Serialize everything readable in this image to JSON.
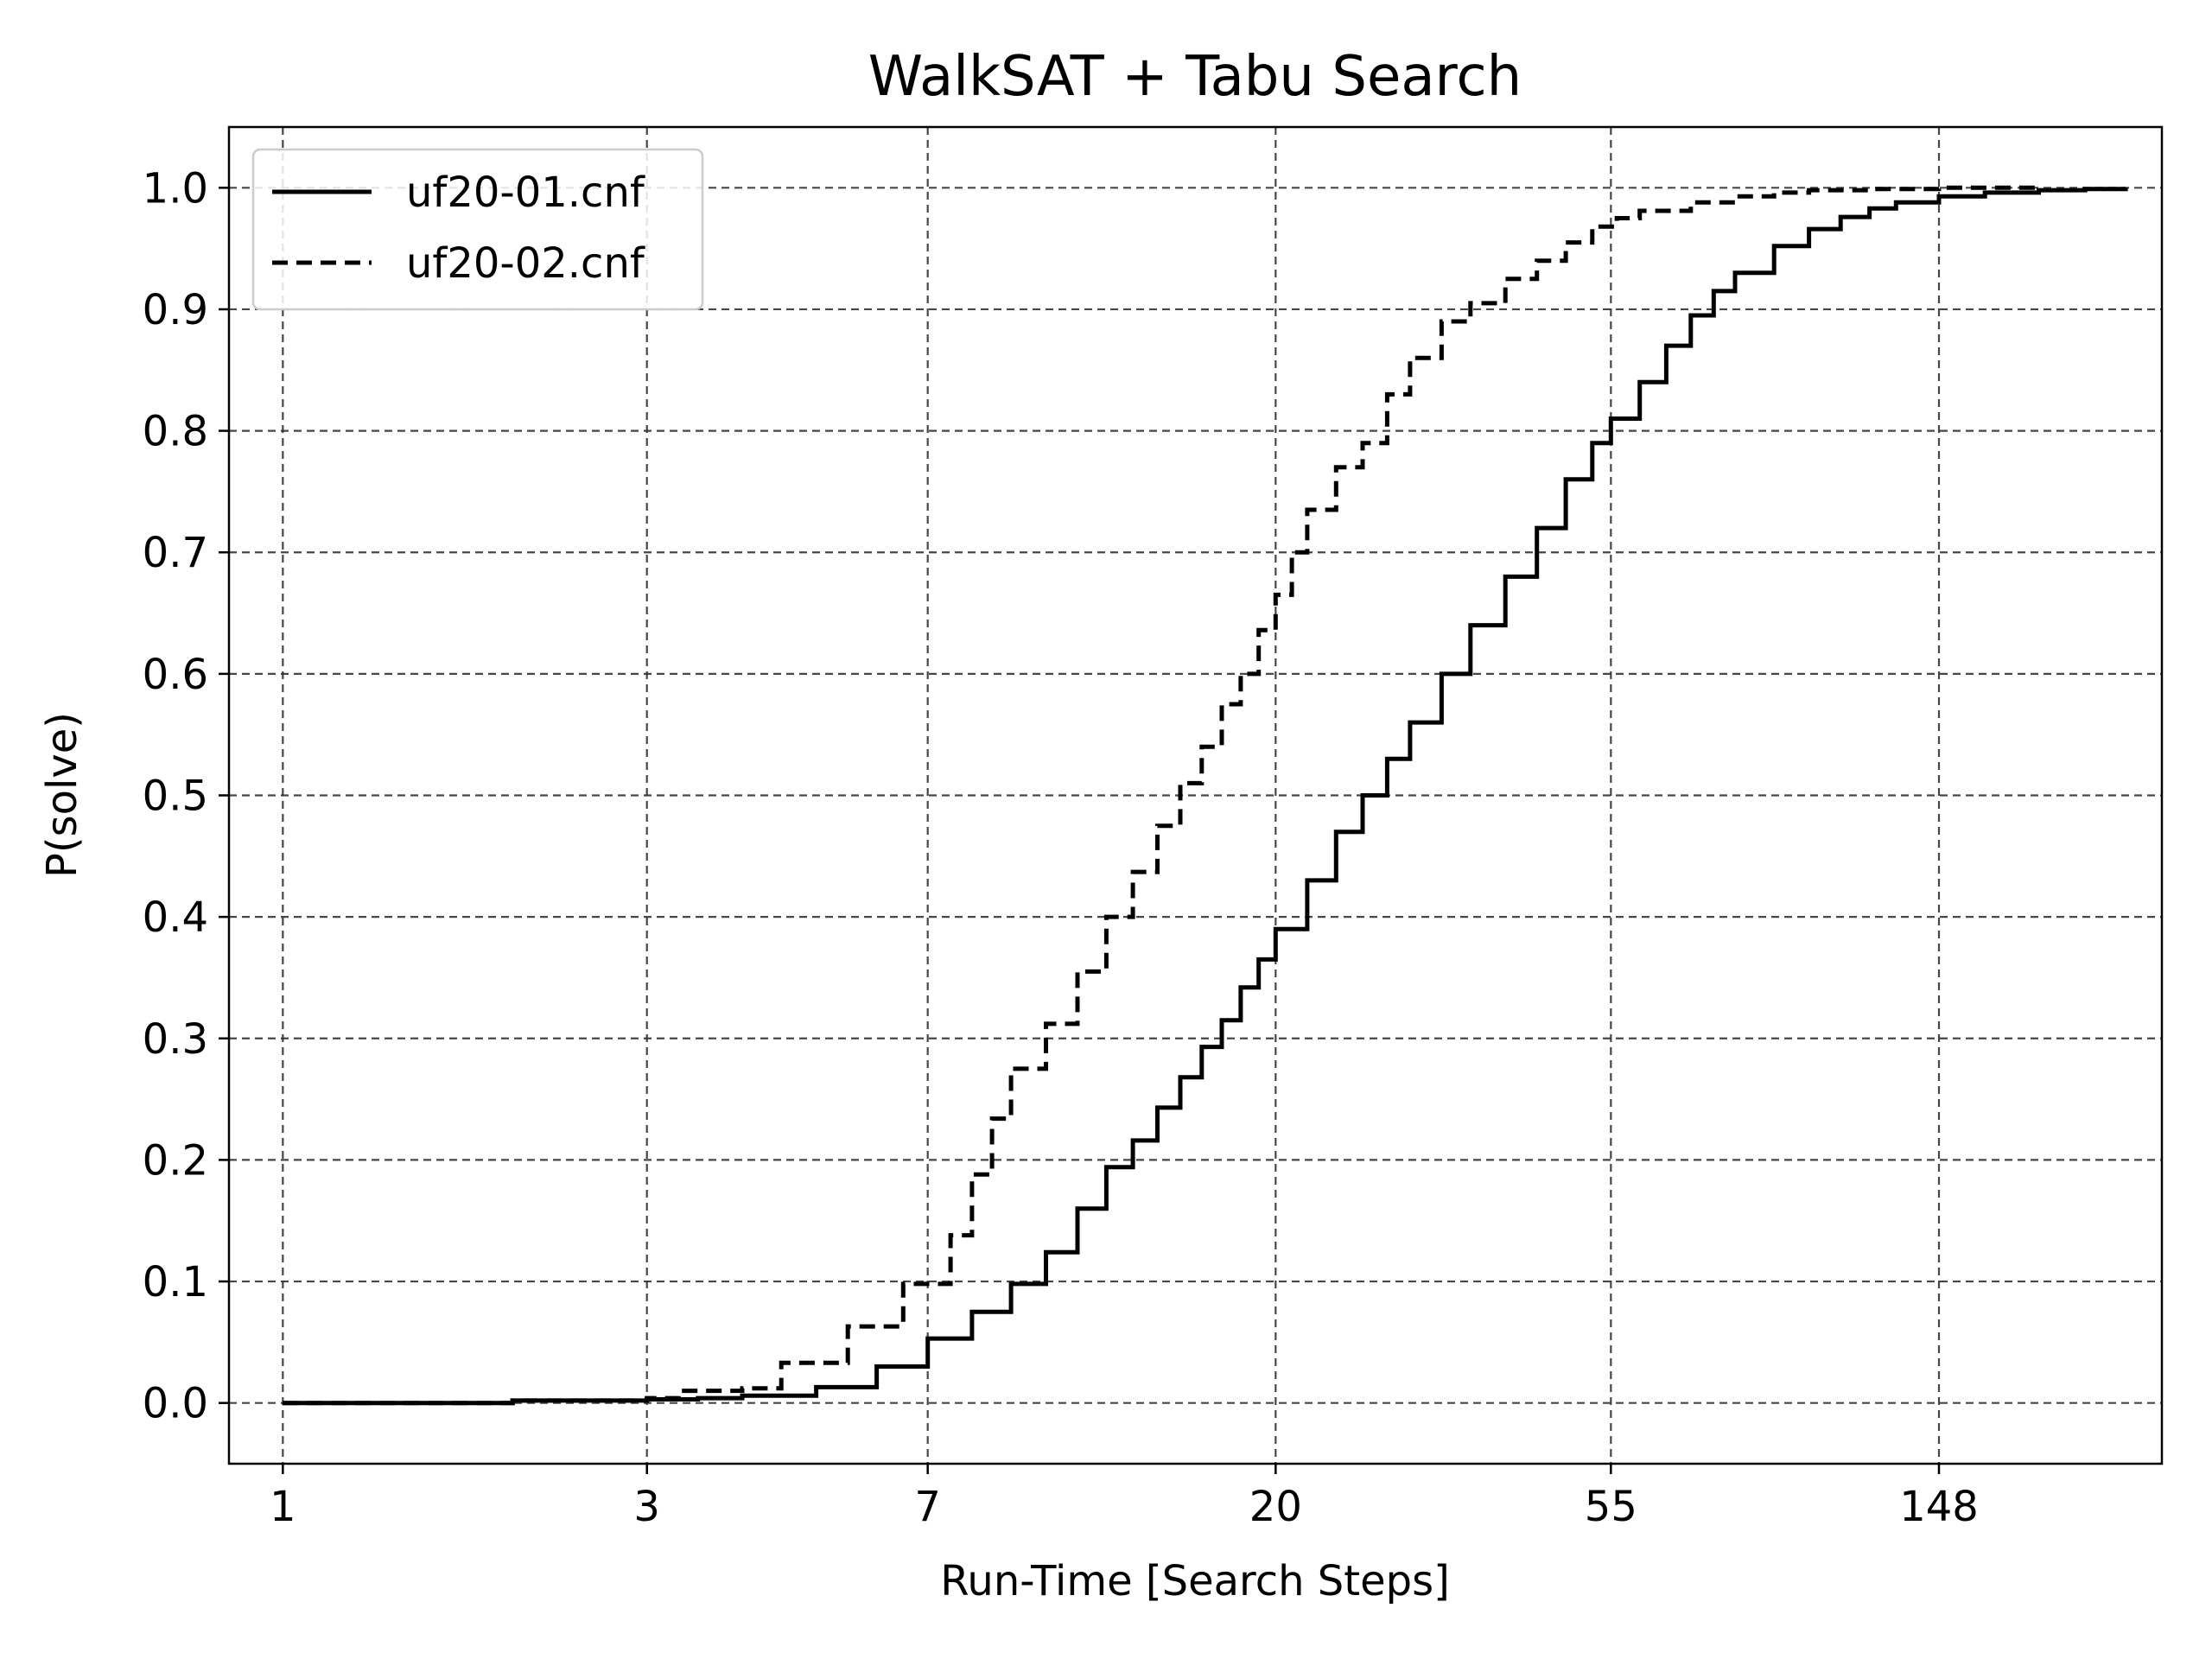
{
  "chart_data": {
    "type": "line",
    "title": "WalkSAT + Tabu Search",
    "xlabel": "Run-Time [Search Steps]",
    "ylabel": "P(solve)",
    "x_scale": "log",
    "xlim": [
      0.85,
      290
    ],
    "ylim": [
      -0.05,
      1.05
    ],
    "x_ticks": [
      1,
      3,
      7,
      20,
      55,
      148
    ],
    "y_ticks": [
      0.0,
      0.1,
      0.2,
      0.3,
      0.4,
      0.5,
      0.6,
      0.7,
      0.8,
      0.9,
      1.0
    ],
    "grid": true,
    "legend_position": "top-left",
    "colors": {
      "line": "#000000",
      "grid": "#333333"
    },
    "series": [
      {
        "name": "uf20-01.cnf",
        "style": "solid",
        "x": [
          1,
          2,
          3,
          3.5,
          4,
          5,
          6,
          7,
          8,
          9,
          10,
          11,
          12,
          13,
          14,
          15,
          16,
          17,
          18,
          19,
          20,
          22,
          24,
          26,
          28,
          30,
          33,
          36,
          40,
          44,
          48,
          52,
          55,
          60,
          65,
          70,
          75,
          80,
          90,
          100,
          110,
          120,
          130,
          148,
          170,
          200,
          230,
          260
        ],
        "y": [
          0.0,
          0.002,
          0.003,
          0.004,
          0.006,
          0.013,
          0.03,
          0.053,
          0.075,
          0.098,
          0.124,
          0.16,
          0.194,
          0.216,
          0.243,
          0.268,
          0.293,
          0.315,
          0.342,
          0.365,
          0.39,
          0.43,
          0.47,
          0.5,
          0.53,
          0.56,
          0.6,
          0.64,
          0.68,
          0.72,
          0.76,
          0.79,
          0.81,
          0.84,
          0.87,
          0.895,
          0.915,
          0.93,
          0.952,
          0.966,
          0.976,
          0.983,
          0.988,
          0.993,
          0.996,
          0.998,
          0.999,
          1.0
        ]
      },
      {
        "name": "uf20-02.cnf",
        "style": "dashed",
        "x": [
          1,
          2,
          3,
          3.3,
          4,
          4.5,
          5,
          5.5,
          6,
          6.5,
          7,
          7.5,
          8,
          8.5,
          9,
          10,
          11,
          12,
          13,
          14,
          15,
          16,
          17,
          18,
          19,
          20,
          21,
          22,
          24,
          26,
          28,
          30,
          33,
          36,
          40,
          44,
          48,
          52,
          56,
          60,
          70,
          80,
          90,
          100,
          120,
          148,
          170,
          200
        ],
        "y": [
          0.0,
          0.002,
          0.004,
          0.01,
          0.012,
          0.033,
          0.033,
          0.063,
          0.063,
          0.098,
          0.098,
          0.138,
          0.188,
          0.234,
          0.275,
          0.312,
          0.355,
          0.4,
          0.437,
          0.475,
          0.51,
          0.54,
          0.575,
          0.6,
          0.636,
          0.665,
          0.7,
          0.735,
          0.77,
          0.79,
          0.83,
          0.86,
          0.89,
          0.905,
          0.925,
          0.94,
          0.955,
          0.968,
          0.975,
          0.981,
          0.988,
          0.993,
          0.996,
          0.998,
          0.999,
          1.0,
          1.0,
          1.0
        ]
      }
    ]
  }
}
